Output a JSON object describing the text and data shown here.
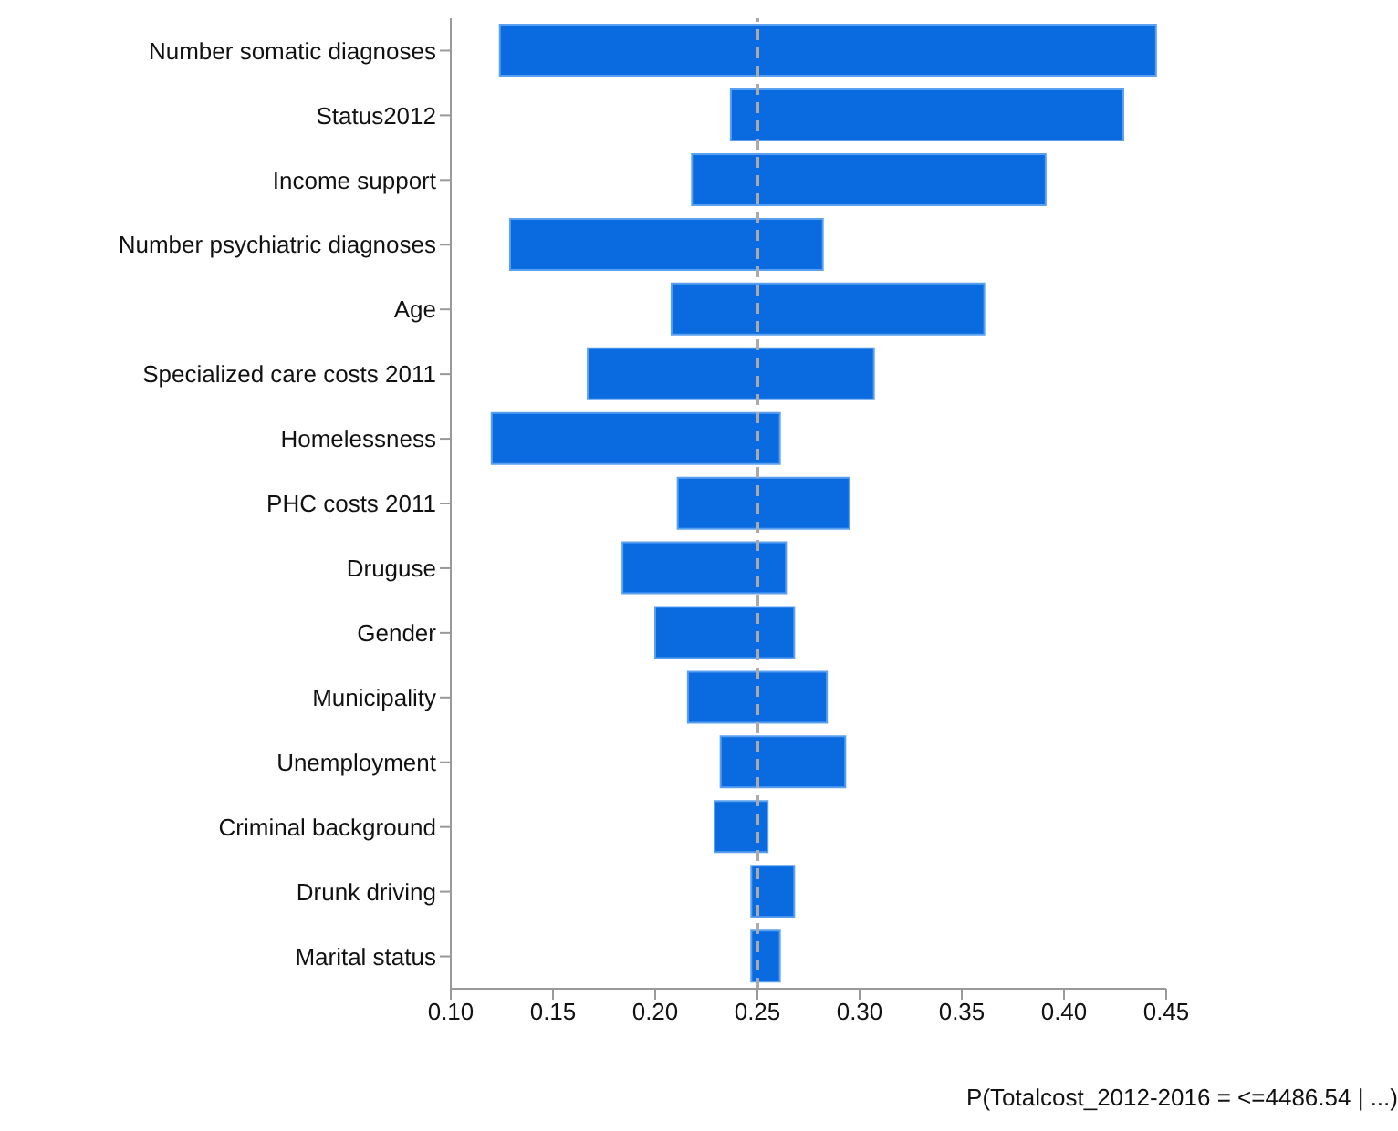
{
  "chart_data": {
    "type": "bar",
    "orientation": "horizontal",
    "categories": [
      "Number somatic diagnoses",
      "Status2012",
      "Income support",
      "Number psychiatric diagnoses",
      "Age",
      "Specialized care costs 2011",
      "Homelessness",
      "PHC costs 2011",
      "Druguse",
      "Gender",
      "Municipality",
      "Unemployment",
      "Criminal background",
      "Drunk driving",
      "Marital status"
    ],
    "base": [
      0.124,
      0.237,
      0.218,
      0.129,
      0.208,
      0.167,
      0.12,
      0.211,
      0.184,
      0.2,
      0.216,
      0.232,
      0.229,
      0.247,
      0.247
    ],
    "values": [
      0.321,
      0.192,
      0.173,
      0.153,
      0.153,
      0.14,
      0.141,
      0.084,
      0.08,
      0.068,
      0.068,
      0.061,
      0.026,
      0.021,
      0.014
    ],
    "color": "#0a6be0",
    "xlabel": "P(Totalcost_2012-2016 = <=4486.54 | ...)",
    "xlim": [
      0.1,
      0.45
    ],
    "xticks": [
      {
        "value": 0.1,
        "label": "0.10"
      },
      {
        "value": 0.15,
        "label": "0.15"
      },
      {
        "value": 0.2,
        "label": "0.20"
      },
      {
        "value": 0.25,
        "label": "0.25"
      },
      {
        "value": 0.3,
        "label": "0.30"
      },
      {
        "value": 0.35,
        "label": "0.35"
      },
      {
        "value": 0.4,
        "label": "0.40"
      },
      {
        "value": 0.45,
        "label": "0.45"
      }
    ],
    "ref_lines": [
      {
        "axis": "x",
        "value": 0.25,
        "color": "#aaaaaa",
        "line_style": "dashed"
      }
    ],
    "grid": false,
    "legend": false
  }
}
